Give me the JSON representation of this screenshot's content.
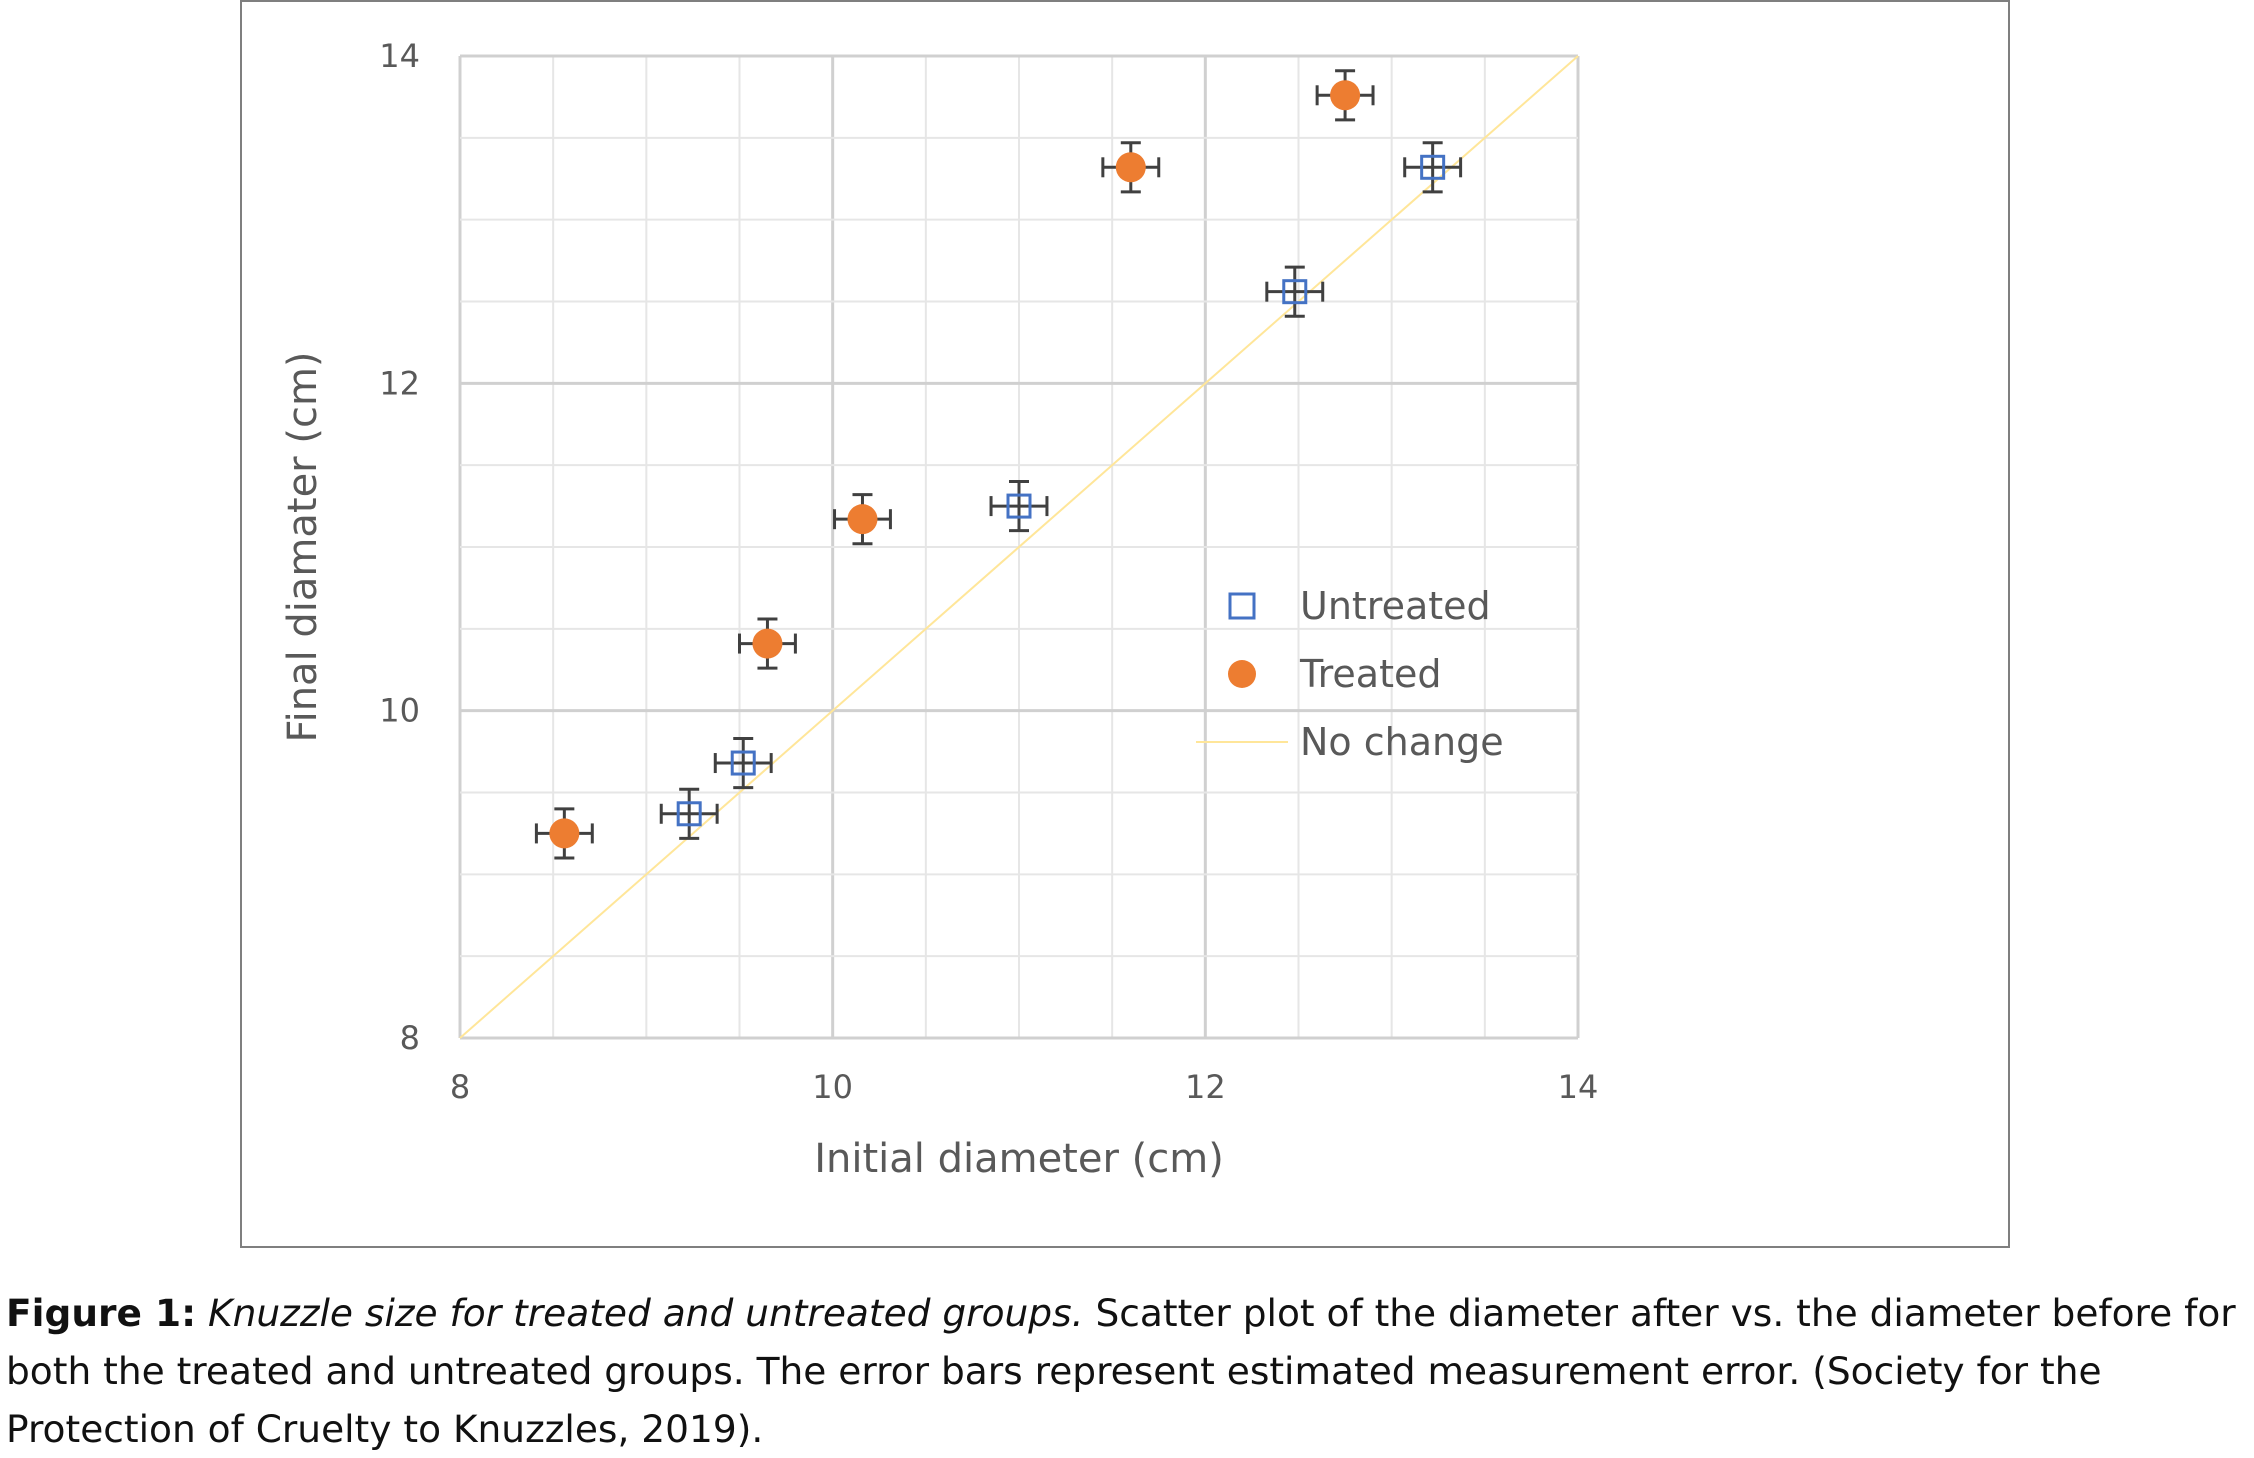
{
  "chart_data": {
    "type": "scatter",
    "xlabel": "Initial diameter (cm)",
    "ylabel": "Final diamater (cm)",
    "xlim": [
      8,
      14
    ],
    "ylim": [
      8,
      14
    ],
    "x_ticks": [
      8,
      10,
      12,
      14
    ],
    "y_ticks": [
      8,
      10,
      12,
      14
    ],
    "grid": "major and minor",
    "legend": "right",
    "error_bars": {
      "x": 0.15,
      "y": 0.15
    },
    "series": [
      {
        "name": "Untreated",
        "marker": "open-square",
        "color": "#4472c4",
        "x": [
          9.23,
          9.52,
          11.0,
          12.48,
          13.22
        ],
        "y": [
          9.37,
          9.68,
          11.25,
          12.56,
          13.32
        ]
      },
      {
        "name": "Treated",
        "marker": "filled-circle",
        "color": "#ed7d31",
        "x": [
          8.56,
          9.65,
          10.16,
          11.6,
          12.75
        ],
        "y": [
          9.25,
          10.41,
          11.17,
          13.32,
          13.76
        ]
      },
      {
        "name": "No change",
        "marker": "line",
        "color": "#ffe699",
        "x": [
          8,
          14
        ],
        "y": [
          8,
          14
        ]
      }
    ]
  },
  "caption": {
    "label": "Figure 1:",
    "title": "Knuzzle size for treated and untreated groups.",
    "text": "Scatter plot of the diameter after vs. the diameter before for both the treated and untreated groups. The error bars represent estimated measurement error. (Society for the Protection of Cruelty to Knuzzles, 2019)."
  }
}
